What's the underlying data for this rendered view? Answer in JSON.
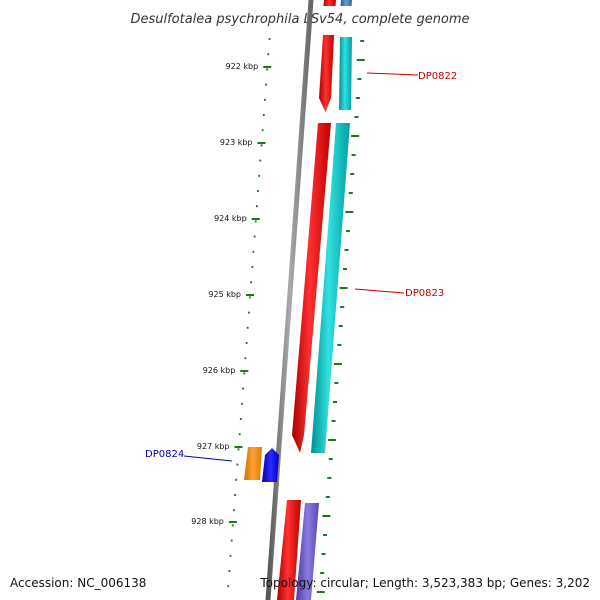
{
  "title": "Desulfotalea psychrophila LSv54, complete genome",
  "accession": "Accession: NC_006138",
  "summary": "Topology: circular; Length: 3,523,383 bp; Genes: 3,202",
  "ruler": {
    "labels": [
      "922 kbp",
      "923 kbp",
      "924 kbp",
      "925 kbp",
      "926 kbp",
      "927 kbp",
      "928 kbp"
    ],
    "color": "#1a7a1a"
  },
  "genes": [
    {
      "label": "DP0822",
      "color": "#cc0000"
    },
    {
      "label": "DP0823",
      "color": "#cc0000"
    },
    {
      "label": "DP0824",
      "color": "#0000aa"
    }
  ],
  "colors": {
    "backbone": "#777777",
    "forward_gene": "#ee1111",
    "reverse_gene": "#11c4c4",
    "orange_gene": "#ff8c00",
    "blue_gene": "#0000ee",
    "purple_gene": "#6a5acd",
    "top_blue": "#3a6fb0"
  }
}
